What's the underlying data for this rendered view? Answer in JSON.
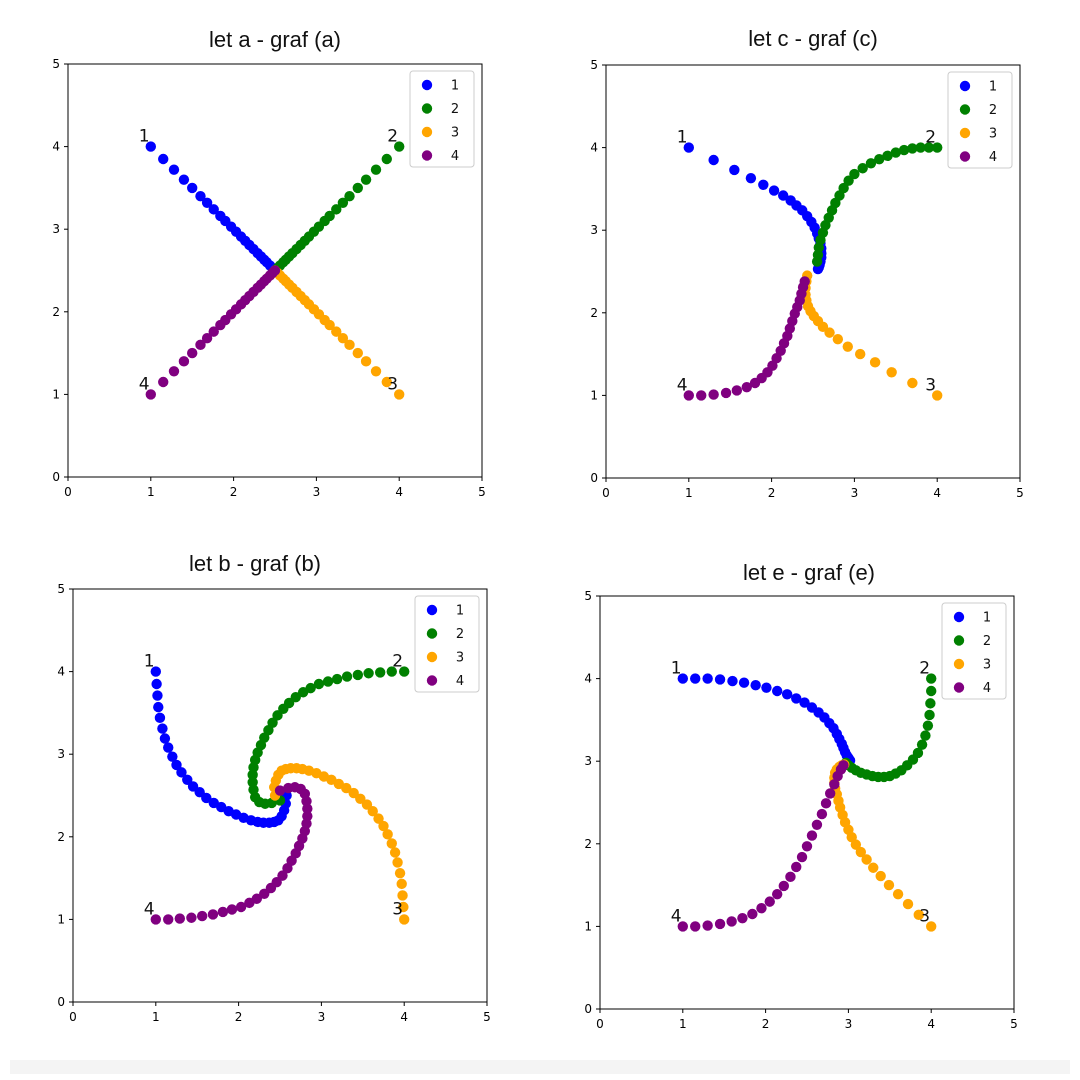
{
  "chart_data": [
    {
      "type": "scatter",
      "title": "let a - graf (a)",
      "xlim": [
        0,
        5
      ],
      "ylim": [
        0,
        5
      ],
      "xticks": [
        "0",
        "1",
        "2",
        "3",
        "4",
        "5"
      ],
      "yticks": [
        "0",
        "1",
        "2",
        "3",
        "4",
        "5"
      ],
      "grid": false,
      "legend": "top-right",
      "point_labels": [
        {
          "text": "1",
          "x": 1,
          "y": 4
        },
        {
          "text": "2",
          "x": 4,
          "y": 4
        },
        {
          "text": "3",
          "x": 4,
          "y": 1
        },
        {
          "text": "4",
          "x": 1,
          "y": 1
        }
      ],
      "series": [
        {
          "name": "1",
          "color": "#0000ff",
          "x": [
            1.0,
            1.15,
            1.28,
            1.4,
            1.5,
            1.6,
            1.68,
            1.76,
            1.84,
            1.9,
            1.97,
            2.03,
            2.09,
            2.14,
            2.19,
            2.24,
            2.29,
            2.33,
            2.37,
            2.4,
            2.44,
            2.47,
            2.5
          ],
          "y": [
            4.0,
            3.85,
            3.72,
            3.6,
            3.5,
            3.4,
            3.32,
            3.24,
            3.16,
            3.1,
            3.03,
            2.97,
            2.91,
            2.86,
            2.81,
            2.76,
            2.71,
            2.67,
            2.63,
            2.6,
            2.56,
            2.53,
            2.5
          ]
        },
        {
          "name": "2",
          "color": "#008000",
          "x": [
            4.0,
            3.85,
            3.72,
            3.6,
            3.5,
            3.4,
            3.32,
            3.24,
            3.16,
            3.1,
            3.03,
            2.97,
            2.91,
            2.86,
            2.81,
            2.76,
            2.71,
            2.67,
            2.63,
            2.6,
            2.56,
            2.53,
            2.5
          ],
          "y": [
            4.0,
            3.85,
            3.72,
            3.6,
            3.5,
            3.4,
            3.32,
            3.24,
            3.16,
            3.1,
            3.03,
            2.97,
            2.91,
            2.86,
            2.81,
            2.76,
            2.71,
            2.67,
            2.63,
            2.6,
            2.56,
            2.53,
            2.5
          ]
        },
        {
          "name": "3",
          "color": "#ffa500",
          "x": [
            4.0,
            3.85,
            3.72,
            3.6,
            3.5,
            3.4,
            3.32,
            3.24,
            3.16,
            3.1,
            3.03,
            2.97,
            2.91,
            2.86,
            2.81,
            2.76,
            2.71,
            2.67,
            2.63,
            2.6,
            2.56,
            2.53,
            2.5
          ],
          "y": [
            1.0,
            1.15,
            1.28,
            1.4,
            1.5,
            1.6,
            1.68,
            1.76,
            1.84,
            1.9,
            1.97,
            2.03,
            2.09,
            2.14,
            2.19,
            2.24,
            2.29,
            2.33,
            2.37,
            2.4,
            2.44,
            2.47,
            2.5
          ]
        },
        {
          "name": "4",
          "color": "#800080",
          "x": [
            1.0,
            1.15,
            1.28,
            1.4,
            1.5,
            1.6,
            1.68,
            1.76,
            1.84,
            1.9,
            1.97,
            2.03,
            2.09,
            2.14,
            2.19,
            2.24,
            2.29,
            2.33,
            2.37,
            2.4,
            2.44,
            2.47,
            2.5
          ],
          "y": [
            1.0,
            1.15,
            1.28,
            1.4,
            1.5,
            1.6,
            1.68,
            1.76,
            1.84,
            1.9,
            1.97,
            2.03,
            2.09,
            2.14,
            2.19,
            2.24,
            2.29,
            2.33,
            2.37,
            2.4,
            2.44,
            2.47,
            2.5
          ]
        }
      ]
    },
    {
      "type": "scatter",
      "title": "let c - graf (c)",
      "xlim": [
        0,
        5
      ],
      "ylim": [
        0,
        5
      ],
      "xticks": [
        "0",
        "1",
        "2",
        "3",
        "4",
        "5"
      ],
      "yticks": [
        "0",
        "1",
        "2",
        "3",
        "4",
        "5"
      ],
      "grid": false,
      "legend": "top-right",
      "point_labels": [
        {
          "text": "1",
          "x": 1,
          "y": 4
        },
        {
          "text": "2",
          "x": 4,
          "y": 4
        },
        {
          "text": "3",
          "x": 4,
          "y": 1
        },
        {
          "text": "4",
          "x": 1,
          "y": 1
        }
      ],
      "series": [
        {
          "name": "1",
          "color": "#0000ff",
          "x": [
            1.0,
            1.3,
            1.55,
            1.75,
            1.9,
            2.03,
            2.14,
            2.23,
            2.3,
            2.37,
            2.43,
            2.48,
            2.52,
            2.55,
            2.57,
            2.59,
            2.6,
            2.6,
            2.6,
            2.59,
            2.58,
            2.57,
            2.56
          ],
          "y": [
            4.0,
            3.85,
            3.73,
            3.63,
            3.55,
            3.48,
            3.42,
            3.36,
            3.3,
            3.24,
            3.17,
            3.1,
            3.03,
            2.96,
            2.9,
            2.84,
            2.78,
            2.72,
            2.67,
            2.62,
            2.58,
            2.55,
            2.53
          ]
        },
        {
          "name": "2",
          "color": "#008000",
          "x": [
            4.0,
            3.9,
            3.8,
            3.7,
            3.6,
            3.5,
            3.4,
            3.3,
            3.2,
            3.1,
            3.0,
            2.93,
            2.87,
            2.82,
            2.77,
            2.73,
            2.69,
            2.65,
            2.62,
            2.59,
            2.57,
            2.56,
            2.55
          ],
          "y": [
            4.0,
            4.0,
            4.0,
            3.99,
            3.97,
            3.94,
            3.9,
            3.86,
            3.81,
            3.75,
            3.68,
            3.6,
            3.51,
            3.42,
            3.33,
            3.24,
            3.15,
            3.06,
            2.97,
            2.88,
            2.79,
            2.7,
            2.62
          ]
        },
        {
          "name": "3",
          "color": "#ffa500",
          "x": [
            4.0,
            3.7,
            3.45,
            3.25,
            3.07,
            2.92,
            2.8,
            2.7,
            2.62,
            2.56,
            2.51,
            2.47,
            2.44,
            2.42,
            2.41,
            2.41,
            2.42,
            2.43
          ],
          "y": [
            1.0,
            1.15,
            1.28,
            1.4,
            1.5,
            1.59,
            1.68,
            1.76,
            1.83,
            1.9,
            1.96,
            2.02,
            2.08,
            2.15,
            2.22,
            2.3,
            2.38,
            2.45
          ]
        },
        {
          "name": "4",
          "color": "#800080",
          "x": [
            1.0,
            1.15,
            1.3,
            1.45,
            1.58,
            1.7,
            1.8,
            1.88,
            1.95,
            2.01,
            2.06,
            2.11,
            2.15,
            2.19,
            2.22,
            2.25,
            2.28,
            2.31,
            2.34,
            2.36,
            2.38,
            2.4
          ],
          "y": [
            1.0,
            1.0,
            1.01,
            1.03,
            1.06,
            1.1,
            1.15,
            1.21,
            1.28,
            1.36,
            1.45,
            1.54,
            1.63,
            1.72,
            1.81,
            1.9,
            1.99,
            2.07,
            2.15,
            2.23,
            2.31,
            2.38
          ]
        }
      ]
    },
    {
      "type": "scatter",
      "title": "let b - graf (b)",
      "xlim": [
        0,
        5
      ],
      "ylim": [
        0,
        5
      ],
      "xticks": [
        "0",
        "1",
        "2",
        "3",
        "4",
        "5"
      ],
      "yticks": [
        "0",
        "1",
        "2",
        "3",
        "4",
        "5"
      ],
      "grid": false,
      "legend": "top-right",
      "point_labels": [
        {
          "text": "1",
          "x": 1,
          "y": 4
        },
        {
          "text": "2",
          "x": 4,
          "y": 4
        },
        {
          "text": "3",
          "x": 4,
          "y": 1
        },
        {
          "text": "4",
          "x": 1,
          "y": 1
        }
      ],
      "series": [
        {
          "name": "1",
          "color": "#0000ff",
          "x": [
            1.0,
            1.01,
            1.02,
            1.03,
            1.05,
            1.08,
            1.11,
            1.15,
            1.2,
            1.25,
            1.31,
            1.38,
            1.45,
            1.53,
            1.61,
            1.7,
            1.79,
            1.88,
            1.97,
            2.06,
            2.15,
            2.23,
            2.3,
            2.37,
            2.43,
            2.48,
            2.52,
            2.55,
            2.57,
            2.58
          ],
          "y": [
            4.0,
            3.85,
            3.71,
            3.57,
            3.44,
            3.31,
            3.19,
            3.08,
            2.97,
            2.87,
            2.78,
            2.69,
            2.61,
            2.54,
            2.47,
            2.41,
            2.36,
            2.31,
            2.27,
            2.23,
            2.2,
            2.18,
            2.17,
            2.17,
            2.18,
            2.2,
            2.25,
            2.32,
            2.4,
            2.5
          ]
        },
        {
          "name": "2",
          "color": "#008000",
          "x": [
            4.0,
            3.85,
            3.71,
            3.57,
            3.44,
            3.31,
            3.19,
            3.08,
            2.97,
            2.87,
            2.78,
            2.69,
            2.61,
            2.54,
            2.47,
            2.41,
            2.36,
            2.31,
            2.27,
            2.23,
            2.2,
            2.18,
            2.17,
            2.17,
            2.18,
            2.2,
            2.25,
            2.32,
            2.4,
            2.5
          ],
          "y": [
            4.0,
            4.0,
            3.99,
            3.98,
            3.96,
            3.94,
            3.91,
            3.88,
            3.85,
            3.8,
            3.75,
            3.69,
            3.62,
            3.55,
            3.47,
            3.38,
            3.29,
            3.2,
            3.11,
            3.02,
            2.93,
            2.84,
            2.75,
            2.66,
            2.57,
            2.48,
            2.42,
            2.4,
            2.41,
            2.44
          ]
        },
        {
          "name": "3",
          "color": "#ffa500",
          "x": [
            4.0,
            3.99,
            3.98,
            3.97,
            3.95,
            3.92,
            3.89,
            3.85,
            3.8,
            3.75,
            3.69,
            3.62,
            3.55,
            3.47,
            3.39,
            3.3,
            3.21,
            3.12,
            3.03,
            2.94,
            2.85,
            2.77,
            2.7,
            2.63,
            2.57,
            2.52,
            2.48,
            2.45,
            2.43,
            2.44
          ],
          "y": [
            1.0,
            1.15,
            1.29,
            1.43,
            1.56,
            1.69,
            1.81,
            1.92,
            2.03,
            2.13,
            2.22,
            2.31,
            2.39,
            2.46,
            2.53,
            2.59,
            2.64,
            2.69,
            2.73,
            2.77,
            2.8,
            2.82,
            2.83,
            2.83,
            2.82,
            2.8,
            2.75,
            2.68,
            2.6,
            2.5
          ]
        },
        {
          "name": "4",
          "color": "#800080",
          "x": [
            1.0,
            1.15,
            1.29,
            1.43,
            1.56,
            1.69,
            1.81,
            1.92,
            2.03,
            2.13,
            2.22,
            2.31,
            2.39,
            2.46,
            2.53,
            2.59,
            2.64,
            2.69,
            2.73,
            2.77,
            2.8,
            2.82,
            2.83,
            2.83,
            2.82,
            2.8,
            2.75,
            2.68,
            2.6,
            2.5
          ],
          "y": [
            1.0,
            1.0,
            1.01,
            1.02,
            1.04,
            1.06,
            1.09,
            1.12,
            1.15,
            1.2,
            1.25,
            1.31,
            1.38,
            1.45,
            1.53,
            1.62,
            1.71,
            1.8,
            1.89,
            1.98,
            2.07,
            2.16,
            2.25,
            2.34,
            2.43,
            2.52,
            2.58,
            2.6,
            2.59,
            2.56
          ]
        }
      ]
    },
    {
      "type": "scatter",
      "title": "let e - graf (e)",
      "xlim": [
        0,
        5
      ],
      "ylim": [
        0,
        5
      ],
      "xticks": [
        "0",
        "1",
        "2",
        "3",
        "4",
        "5"
      ],
      "yticks": [
        "0",
        "1",
        "2",
        "3",
        "4",
        "5"
      ],
      "grid": false,
      "legend": "top-right",
      "point_labels": [
        {
          "text": "1",
          "x": 1,
          "y": 4
        },
        {
          "text": "2",
          "x": 4,
          "y": 4
        },
        {
          "text": "3",
          "x": 4,
          "y": 1
        },
        {
          "text": "4",
          "x": 1,
          "y": 1
        }
      ],
      "series": [
        {
          "name": "1",
          "color": "#0000ff",
          "x": [
            1.0,
            1.15,
            1.3,
            1.45,
            1.6,
            1.74,
            1.88,
            2.01,
            2.14,
            2.26,
            2.37,
            2.47,
            2.56,
            2.64,
            2.71,
            2.77,
            2.82,
            2.86,
            2.89,
            2.92,
            2.94,
            2.96,
            2.98,
            3.0,
            3.02
          ],
          "y": [
            4.0,
            4.0,
            4.0,
            3.99,
            3.97,
            3.95,
            3.92,
            3.89,
            3.85,
            3.81,
            3.76,
            3.71,
            3.65,
            3.59,
            3.53,
            3.46,
            3.4,
            3.33,
            3.27,
            3.21,
            3.16,
            3.11,
            3.07,
            3.04,
            3.01
          ]
        },
        {
          "name": "2",
          "color": "#008000",
          "x": [
            4.0,
            4.0,
            3.99,
            3.98,
            3.96,
            3.93,
            3.89,
            3.84,
            3.78,
            3.71,
            3.64,
            3.57,
            3.5,
            3.43,
            3.36,
            3.29,
            3.22,
            3.15,
            3.09,
            3.04,
            3.0,
            2.97
          ],
          "y": [
            4.0,
            3.85,
            3.7,
            3.56,
            3.43,
            3.31,
            3.2,
            3.1,
            3.02,
            2.95,
            2.89,
            2.85,
            2.82,
            2.81,
            2.81,
            2.82,
            2.84,
            2.86,
            2.89,
            2.92,
            2.95,
            2.98
          ]
        },
        {
          "name": "3",
          "color": "#ffa500",
          "x": [
            4.0,
            3.85,
            3.72,
            3.6,
            3.49,
            3.39,
            3.3,
            3.22,
            3.15,
            3.09,
            3.04,
            3.0,
            2.96,
            2.93,
            2.9,
            2.88,
            2.86,
            2.84,
            2.83,
            2.83,
            2.84,
            2.86,
            2.89,
            2.92,
            2.95
          ],
          "y": [
            1.0,
            1.14,
            1.27,
            1.39,
            1.5,
            1.61,
            1.71,
            1.81,
            1.9,
            1.99,
            2.08,
            2.17,
            2.26,
            2.35,
            2.44,
            2.52,
            2.6,
            2.67,
            2.74,
            2.8,
            2.86,
            2.9,
            2.93,
            2.95,
            2.96
          ]
        },
        {
          "name": "4",
          "color": "#800080",
          "x": [
            1.0,
            1.15,
            1.3,
            1.45,
            1.59,
            1.72,
            1.84,
            1.95,
            2.05,
            2.14,
            2.22,
            2.3,
            2.37,
            2.44,
            2.5,
            2.56,
            2.62,
            2.68,
            2.73,
            2.78,
            2.83,
            2.87,
            2.91,
            2.94
          ],
          "y": [
            1.0,
            1.0,
            1.01,
            1.03,
            1.06,
            1.1,
            1.15,
            1.22,
            1.3,
            1.39,
            1.49,
            1.6,
            1.72,
            1.84,
            1.97,
            2.1,
            2.23,
            2.36,
            2.49,
            2.61,
            2.72,
            2.82,
            2.9,
            2.95
          ]
        }
      ]
    }
  ]
}
